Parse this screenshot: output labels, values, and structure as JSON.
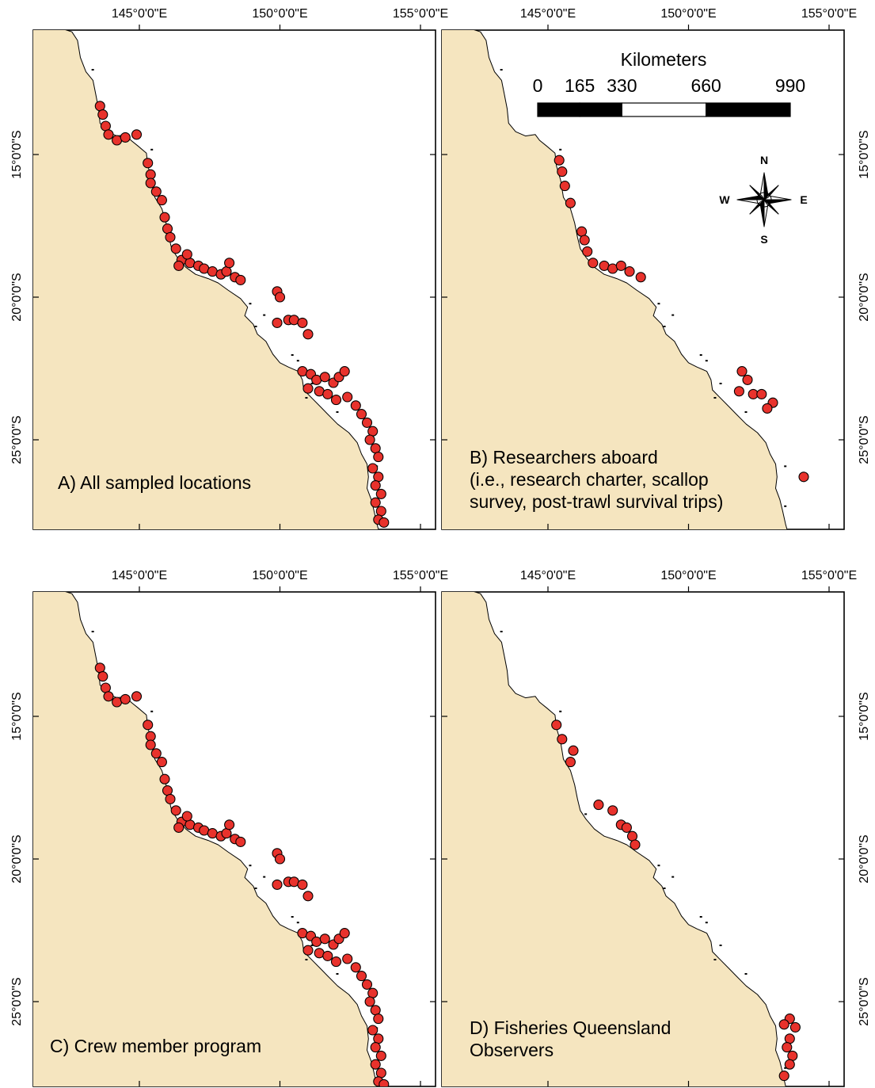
{
  "figure": {
    "longitude_labels": [
      "145°0'0\"E",
      "150°0'0\"E",
      "155°0'0\"E"
    ],
    "latitude_labels": [
      "15°0'0\"S",
      "20°0'0\"S",
      "25°0'0\"S"
    ],
    "panels": [
      {
        "id": "A",
        "label_lines": [
          "A) All sampled locations"
        ],
        "lat_labels_side": "left",
        "sites": [
          [
            143.6,
            13.3
          ],
          [
            143.7,
            13.6
          ],
          [
            143.8,
            14.0
          ],
          [
            143.9,
            14.3
          ],
          [
            144.2,
            14.5
          ],
          [
            144.5,
            14.4
          ],
          [
            144.9,
            14.3
          ],
          [
            145.3,
            15.3
          ],
          [
            145.4,
            15.7
          ],
          [
            145.4,
            16.0
          ],
          [
            145.6,
            16.3
          ],
          [
            145.8,
            16.6
          ],
          [
            145.9,
            17.2
          ],
          [
            146.0,
            17.6
          ],
          [
            146.1,
            17.9
          ],
          [
            146.3,
            18.3
          ],
          [
            146.5,
            18.7
          ],
          [
            146.4,
            18.9
          ],
          [
            146.8,
            18.8
          ],
          [
            147.1,
            18.9
          ],
          [
            147.3,
            19.0
          ],
          [
            147.6,
            19.1
          ],
          [
            147.9,
            19.2
          ],
          [
            148.1,
            19.1
          ],
          [
            148.4,
            19.3
          ],
          [
            148.6,
            19.4
          ],
          [
            148.2,
            18.8
          ],
          [
            146.7,
            18.5
          ],
          [
            149.9,
            19.8
          ],
          [
            150.0,
            20.0
          ],
          [
            149.9,
            20.9
          ],
          [
            150.3,
            20.8
          ],
          [
            150.5,
            20.8
          ],
          [
            150.8,
            20.9
          ],
          [
            151.0,
            21.3
          ],
          [
            150.8,
            22.6
          ],
          [
            151.1,
            22.7
          ],
          [
            151.3,
            22.9
          ],
          [
            151.6,
            22.8
          ],
          [
            151.9,
            23.0
          ],
          [
            152.1,
            22.8
          ],
          [
            152.3,
            22.6
          ],
          [
            151.0,
            23.2
          ],
          [
            151.4,
            23.3
          ],
          [
            151.7,
            23.4
          ],
          [
            152.0,
            23.6
          ],
          [
            152.4,
            23.5
          ],
          [
            152.7,
            23.8
          ],
          [
            152.9,
            24.1
          ],
          [
            153.1,
            24.4
          ],
          [
            153.3,
            24.7
          ],
          [
            153.2,
            25.0
          ],
          [
            153.4,
            25.3
          ],
          [
            153.5,
            25.6
          ],
          [
            153.3,
            26.0
          ],
          [
            153.5,
            26.3
          ],
          [
            153.4,
            26.6
          ],
          [
            153.6,
            26.9
          ],
          [
            153.4,
            27.2
          ],
          [
            153.6,
            27.5
          ],
          [
            153.5,
            27.8
          ],
          [
            153.7,
            27.9
          ]
        ]
      },
      {
        "id": "B",
        "label_lines": [
          "B) Researchers aboard",
          "(i.e., research charter, scallop",
          "survey, post-trawl survival trips)"
        ],
        "lat_labels_side": "right",
        "sites": [
          [
            145.4,
            15.2
          ],
          [
            145.5,
            15.6
          ],
          [
            145.6,
            16.1
          ],
          [
            145.8,
            16.7
          ],
          [
            146.2,
            17.7
          ],
          [
            146.3,
            18.0
          ],
          [
            146.4,
            18.4
          ],
          [
            146.6,
            18.8
          ],
          [
            147.0,
            18.9
          ],
          [
            147.3,
            19.0
          ],
          [
            147.6,
            18.9
          ],
          [
            147.9,
            19.1
          ],
          [
            148.3,
            19.3
          ],
          [
            151.9,
            22.6
          ],
          [
            152.1,
            22.9
          ],
          [
            151.8,
            23.3
          ],
          [
            152.3,
            23.4
          ],
          [
            152.6,
            23.4
          ],
          [
            153.0,
            23.7
          ],
          [
            152.8,
            23.9
          ],
          [
            154.1,
            26.3
          ]
        ]
      },
      {
        "id": "C",
        "label_lines": [
          "C) Crew member program"
        ],
        "lat_labels_side": "left",
        "sites": [
          [
            143.6,
            13.3
          ],
          [
            143.7,
            13.6
          ],
          [
            143.8,
            14.0
          ],
          [
            143.9,
            14.3
          ],
          [
            144.2,
            14.5
          ],
          [
            144.5,
            14.4
          ],
          [
            144.9,
            14.3
          ],
          [
            145.3,
            15.3
          ],
          [
            145.4,
            15.7
          ],
          [
            145.4,
            16.0
          ],
          [
            145.6,
            16.3
          ],
          [
            145.8,
            16.6
          ],
          [
            145.9,
            17.2
          ],
          [
            146.0,
            17.6
          ],
          [
            146.1,
            17.9
          ],
          [
            146.3,
            18.3
          ],
          [
            146.5,
            18.7
          ],
          [
            146.4,
            18.9
          ],
          [
            146.8,
            18.8
          ],
          [
            147.1,
            18.9
          ],
          [
            147.3,
            19.0
          ],
          [
            147.6,
            19.1
          ],
          [
            147.9,
            19.2
          ],
          [
            148.1,
            19.1
          ],
          [
            148.4,
            19.3
          ],
          [
            148.6,
            19.4
          ],
          [
            148.2,
            18.8
          ],
          [
            146.7,
            18.5
          ],
          [
            149.9,
            19.8
          ],
          [
            150.0,
            20.0
          ],
          [
            149.9,
            20.9
          ],
          [
            150.3,
            20.8
          ],
          [
            150.5,
            20.8
          ],
          [
            150.8,
            20.9
          ],
          [
            151.0,
            21.3
          ],
          [
            150.8,
            22.6
          ],
          [
            151.1,
            22.7
          ],
          [
            151.3,
            22.9
          ],
          [
            151.6,
            22.8
          ],
          [
            151.9,
            23.0
          ],
          [
            152.1,
            22.8
          ],
          [
            152.3,
            22.6
          ],
          [
            151.0,
            23.2
          ],
          [
            151.4,
            23.3
          ],
          [
            151.7,
            23.4
          ],
          [
            152.0,
            23.6
          ],
          [
            152.4,
            23.5
          ],
          [
            152.7,
            23.8
          ],
          [
            152.9,
            24.1
          ],
          [
            153.1,
            24.4
          ],
          [
            153.3,
            24.7
          ],
          [
            153.2,
            25.0
          ],
          [
            153.4,
            25.3
          ],
          [
            153.5,
            25.6
          ],
          [
            153.3,
            26.0
          ],
          [
            153.5,
            26.3
          ],
          [
            153.4,
            26.6
          ],
          [
            153.6,
            26.9
          ],
          [
            153.4,
            27.2
          ],
          [
            153.6,
            27.5
          ],
          [
            153.5,
            27.8
          ],
          [
            153.7,
            27.9
          ]
        ]
      },
      {
        "id": "D",
        "label_lines": [
          "D) Fisheries Queensland",
          "Observers"
        ],
        "lat_labels_side": "right",
        "sites": [
          [
            145.3,
            15.3
          ],
          [
            145.5,
            15.8
          ],
          [
            145.9,
            16.2
          ],
          [
            145.8,
            16.6
          ],
          [
            146.8,
            18.1
          ],
          [
            147.3,
            18.3
          ],
          [
            147.6,
            18.8
          ],
          [
            147.8,
            18.9
          ],
          [
            148.0,
            19.2
          ],
          [
            148.1,
            19.5
          ],
          [
            153.6,
            25.6
          ],
          [
            153.4,
            25.8
          ],
          [
            153.8,
            25.9
          ],
          [
            153.6,
            26.3
          ],
          [
            153.5,
            26.6
          ],
          [
            153.7,
            26.9
          ],
          [
            153.6,
            27.2
          ],
          [
            153.4,
            27.6
          ]
        ]
      }
    ],
    "scale_bar": {
      "title": "Kilometers",
      "labels": [
        "0",
        "165",
        "330",
        "660",
        "990"
      ]
    },
    "north_arrow": {
      "letters": {
        "n": "N",
        "e": "E",
        "s": "S",
        "w": "W"
      }
    },
    "colors": {
      "land": "#f5e5bf",
      "site_fill": "#e8322c",
      "outline": "#000000"
    }
  }
}
